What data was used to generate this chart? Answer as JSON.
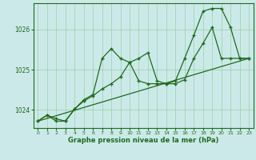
{
  "xlabel": "Graphe pression niveau de la mer (hPa)",
  "xlim": [
    -0.5,
    23.5
  ],
  "ylim": [
    1023.55,
    1026.65
  ],
  "yticks": [
    1024,
    1025,
    1026
  ],
  "xticks": [
    0,
    1,
    2,
    3,
    4,
    5,
    6,
    7,
    8,
    9,
    10,
    11,
    12,
    13,
    14,
    15,
    16,
    17,
    18,
    19,
    20,
    21,
    22,
    23
  ],
  "bg_color": "#cce9e9",
  "line_color": "#1e6b1e",
  "grid_color": "#7cc47c",
  "line_trend": {
    "x": [
      0,
      23
    ],
    "y": [
      1023.72,
      1025.28
    ]
  },
  "line_main": {
    "x": [
      0,
      1,
      2,
      3,
      4,
      5,
      6,
      7,
      8,
      9,
      10,
      11,
      12,
      13,
      14,
      15,
      16,
      17,
      18,
      19,
      20,
      21,
      22,
      23
    ],
    "y": [
      1023.72,
      1023.87,
      1023.72,
      1023.72,
      1024.02,
      1024.25,
      1024.38,
      1025.28,
      1025.52,
      1025.28,
      1025.18,
      1024.72,
      1024.65,
      1024.65,
      1024.65,
      1024.72,
      1025.28,
      1025.85,
      1026.45,
      1026.52,
      1026.52,
      1026.05,
      1025.28,
      1025.28
    ]
  },
  "line_secondary": {
    "x": [
      0,
      1,
      2,
      3,
      4,
      5,
      6,
      7,
      8,
      9,
      10,
      11,
      12,
      13,
      14,
      15,
      16,
      17,
      18,
      19,
      20,
      21,
      22,
      23
    ],
    "y": [
      1023.72,
      1023.87,
      1023.78,
      1023.72,
      1024.02,
      1024.22,
      1024.35,
      1024.52,
      1024.65,
      1024.82,
      1025.18,
      1025.28,
      1025.42,
      1024.72,
      1024.65,
      1024.65,
      1024.75,
      1025.28,
      1025.65,
      1026.05,
      1025.28,
      1025.28,
      1025.28,
      1025.28
    ]
  }
}
